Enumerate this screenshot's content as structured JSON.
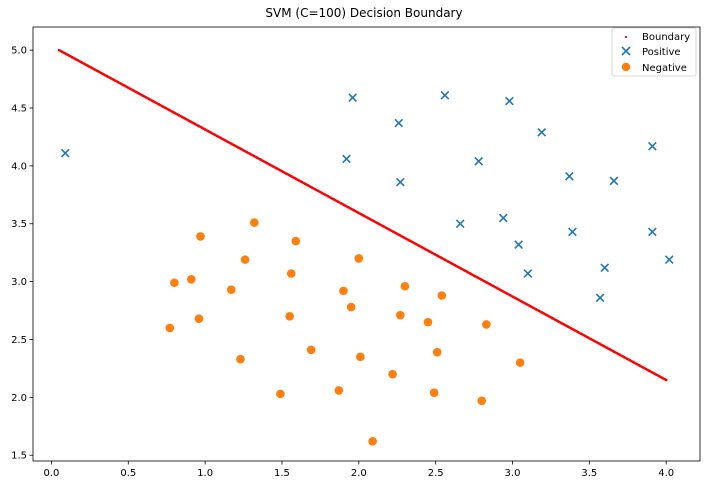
{
  "colors": {
    "boundary": "#ff0000",
    "positive": "#1f77b4",
    "negative": "#ff7f0e",
    "axis": "#000000",
    "background": "#ffffff",
    "legend_border": "#cccccc"
  },
  "chart_data": {
    "type": "scatter",
    "title": "SVM (C=100) Decision Boundary",
    "xlabel": "",
    "ylabel": "",
    "xlim": [
      -0.12,
      4.22
    ],
    "ylim": [
      1.45,
      5.2
    ],
    "xticks": [
      0.0,
      0.5,
      1.0,
      1.5,
      2.0,
      2.5,
      3.0,
      3.5,
      4.0
    ],
    "xtick_labels": [
      "0.0",
      "0.5",
      "1.0",
      "1.5",
      "2.0",
      "2.5",
      "3.0",
      "3.5",
      "4.0"
    ],
    "yticks": [
      1.5,
      2.0,
      2.5,
      3.0,
      3.5,
      4.0,
      4.5,
      5.0
    ],
    "ytick_labels": [
      "1.5",
      "2.0",
      "2.5",
      "3.0",
      "3.5",
      "4.0",
      "4.5",
      "5.0"
    ],
    "grid": false,
    "legend_position": "top-right",
    "series": [
      {
        "name": "Boundary",
        "marker": "dot",
        "line": {
          "x_start": 0.05,
          "y_start": 5.0,
          "x_end": 4.0,
          "y_end": 2.15
        }
      },
      {
        "name": "Positive",
        "marker": "x",
        "points": [
          [
            0.09,
            4.11
          ],
          [
            1.96,
            4.59
          ],
          [
            2.56,
            4.61
          ],
          [
            2.98,
            4.56
          ],
          [
            2.26,
            4.37
          ],
          [
            3.19,
            4.29
          ],
          [
            3.91,
            4.17
          ],
          [
            1.92,
            4.06
          ],
          [
            2.78,
            4.04
          ],
          [
            3.37,
            3.91
          ],
          [
            2.27,
            3.86
          ],
          [
            3.66,
            3.87
          ],
          [
            2.66,
            3.5
          ],
          [
            2.94,
            3.55
          ],
          [
            3.39,
            3.43
          ],
          [
            3.91,
            3.43
          ],
          [
            3.04,
            3.32
          ],
          [
            4.02,
            3.19
          ],
          [
            3.1,
            3.07
          ],
          [
            3.6,
            3.12
          ],
          [
            3.57,
            2.86
          ]
        ]
      },
      {
        "name": "Negative",
        "marker": "circle",
        "points": [
          [
            1.32,
            3.51
          ],
          [
            0.97,
            3.39
          ],
          [
            1.59,
            3.35
          ],
          [
            1.26,
            3.19
          ],
          [
            2.0,
            3.2
          ],
          [
            1.56,
            3.07
          ],
          [
            0.91,
            3.02
          ],
          [
            0.8,
            2.99
          ],
          [
            2.3,
            2.96
          ],
          [
            1.17,
            2.93
          ],
          [
            1.9,
            2.92
          ],
          [
            2.54,
            2.88
          ],
          [
            1.95,
            2.78
          ],
          [
            2.27,
            2.71
          ],
          [
            1.55,
            2.7
          ],
          [
            0.96,
            2.68
          ],
          [
            2.45,
            2.65
          ],
          [
            2.83,
            2.63
          ],
          [
            0.77,
            2.6
          ],
          [
            1.69,
            2.41
          ],
          [
            2.51,
            2.39
          ],
          [
            2.01,
            2.35
          ],
          [
            1.23,
            2.33
          ],
          [
            3.05,
            2.3
          ],
          [
            2.22,
            2.2
          ],
          [
            1.87,
            2.06
          ],
          [
            1.49,
            2.03
          ],
          [
            2.49,
            2.04
          ],
          [
            2.8,
            1.97
          ],
          [
            2.09,
            1.62
          ]
        ]
      }
    ]
  }
}
